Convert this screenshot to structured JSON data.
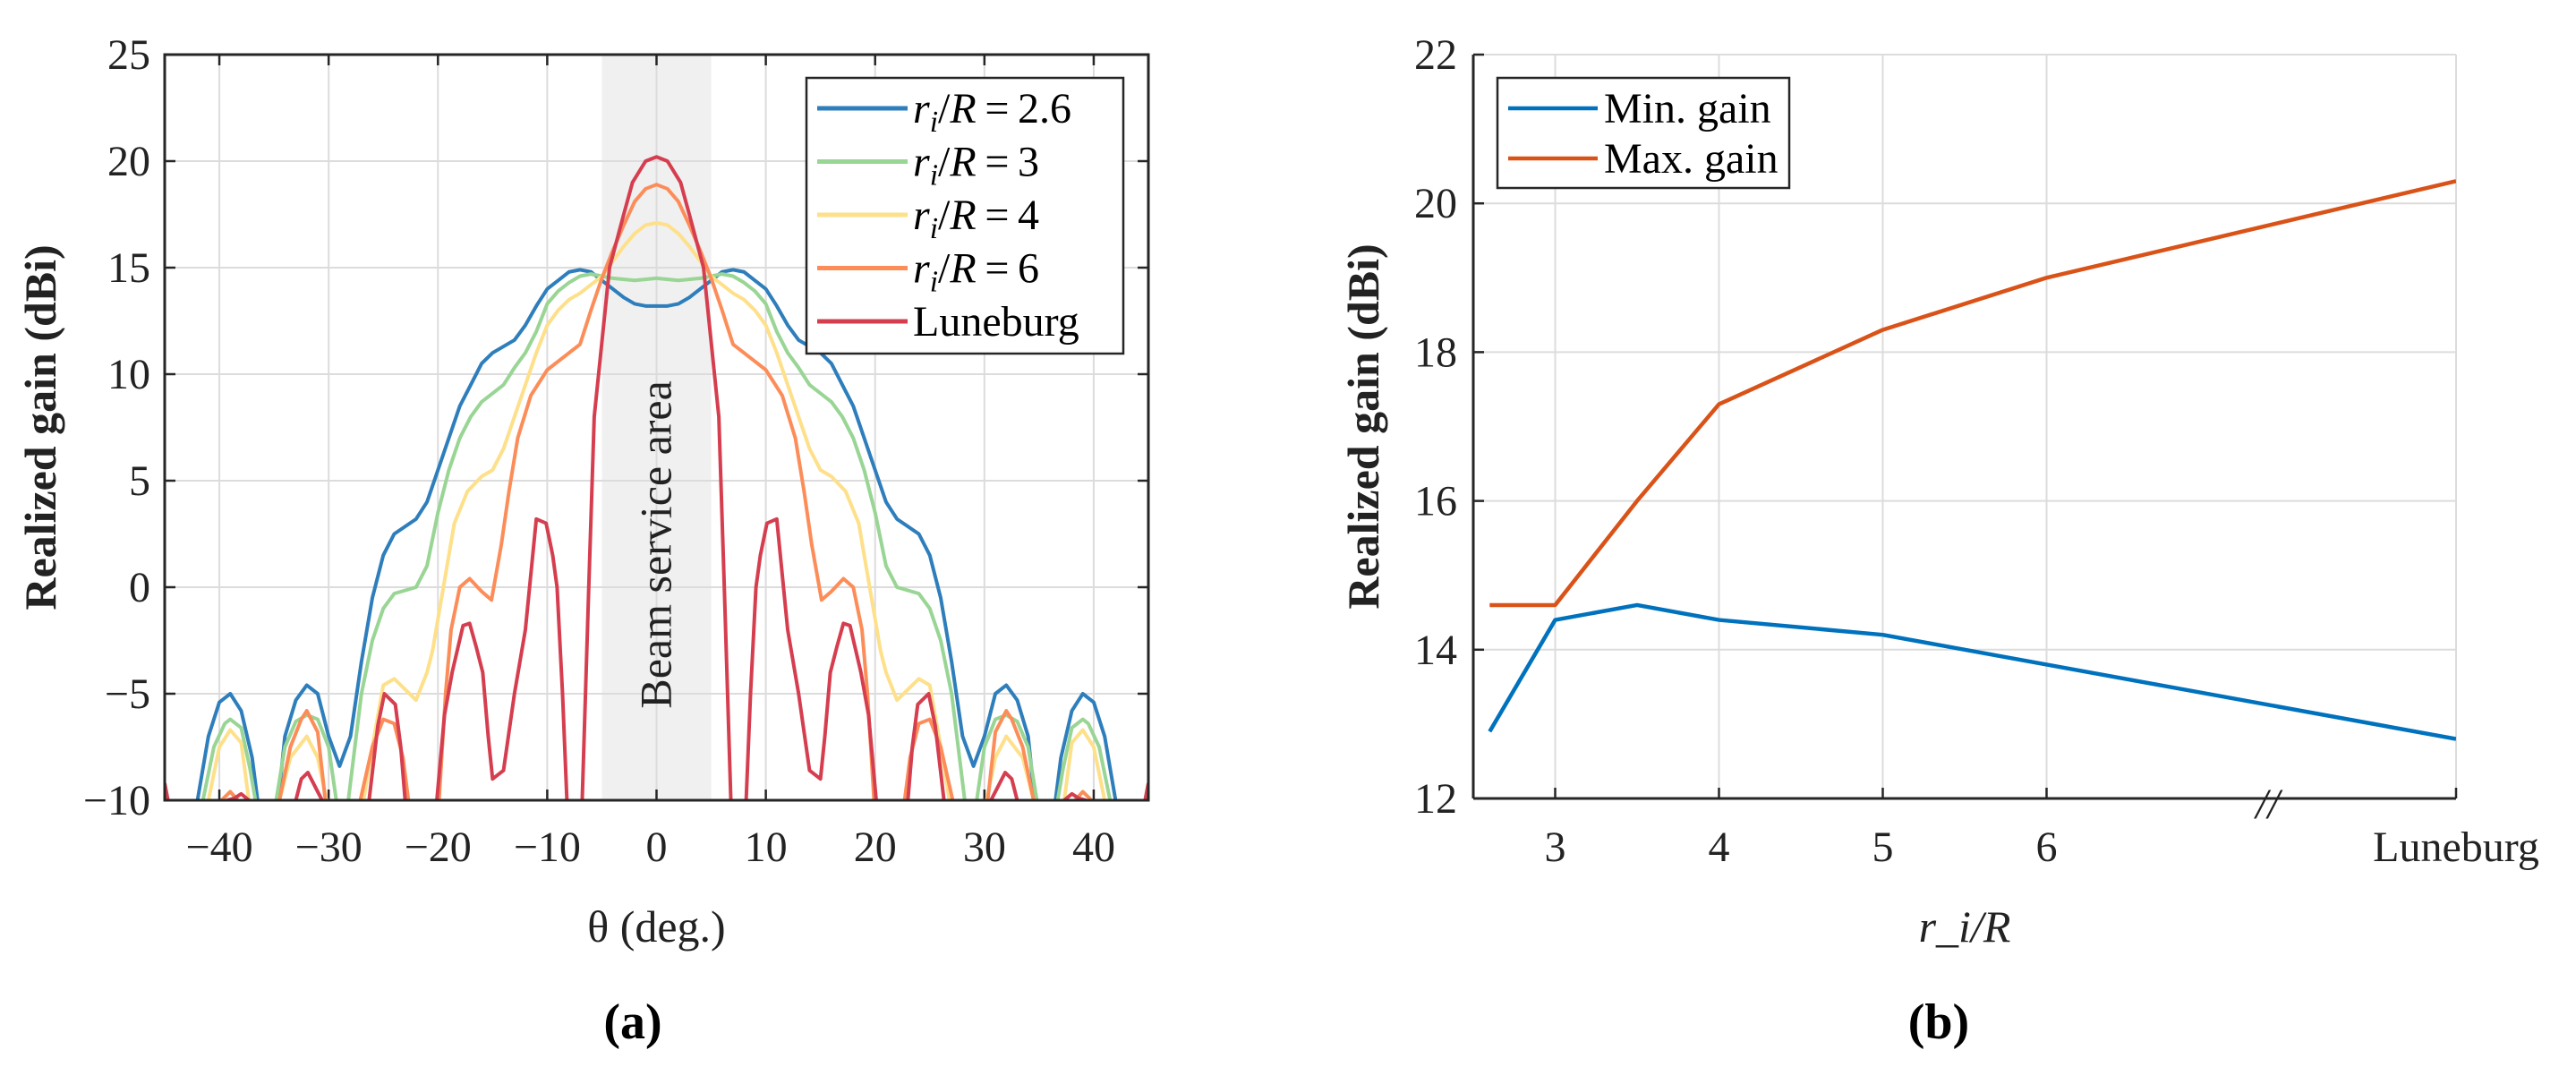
{
  "chart_data": [
    {
      "type": "line",
      "panel_label": "(a)",
      "xlabel": "θ (deg.)",
      "ylabel": "Realized gain (dBi)",
      "xlim": [
        -45,
        45
      ],
      "ylim": [
        -10,
        25
      ],
      "xticks": [
        -40,
        -30,
        -20,
        -10,
        0,
        10,
        20,
        30,
        40
      ],
      "yticks": [
        -10,
        -5,
        0,
        5,
        10,
        15,
        20,
        25
      ],
      "grid": true,
      "legend_position": "top-right",
      "symmetric_about_zero": true,
      "shaded_region": {
        "x": [
          -5,
          5
        ],
        "label": "Beam service area",
        "color": "#f0f0f0"
      },
      "series": [
        {
          "name": "r_i/R = 2.6",
          "color": "#2e7ebc",
          "segments": [
            [
              [
                -42,
                -10
              ],
              [
                -41,
                -7
              ],
              [
                -40,
                -5.4
              ],
              [
                -39,
                -5
              ],
              [
                -38,
                -5.8
              ],
              [
                -37,
                -8
              ],
              [
                -36.5,
                -10
              ]
            ],
            [
              [
                -34.6,
                -10
              ],
              [
                -34,
                -7
              ],
              [
                -33,
                -5.3
              ],
              [
                -32,
                -4.6
              ],
              [
                -31,
                -5
              ],
              [
                -30,
                -7
              ],
              [
                -29,
                -8.4
              ],
              [
                -28,
                -7
              ],
              [
                -27,
                -3.5
              ],
              [
                -26,
                -0.5
              ],
              [
                -25,
                1.5
              ],
              [
                -24,
                2.5
              ],
              [
                -22,
                3.2
              ],
              [
                -21,
                4
              ],
              [
                -20,
                5.5
              ],
              [
                -19,
                7
              ],
              [
                -18,
                8.5
              ],
              [
                -17,
                9.5
              ],
              [
                -16,
                10.5
              ],
              [
                -15,
                11
              ],
              [
                -13,
                11.6
              ],
              [
                -12,
                12.3
              ],
              [
                -11,
                13.2
              ],
              [
                -10,
                14
              ],
              [
                -9,
                14.4
              ],
              [
                -8,
                14.8
              ],
              [
                -7,
                14.9
              ],
              [
                -6,
                14.8
              ],
              [
                -5,
                14.4
              ],
              [
                -4,
                14
              ],
              [
                -3,
                13.6
              ],
              [
                -2,
                13.3
              ],
              [
                -1,
                13.2
              ],
              [
                0,
                13.2
              ]
            ]
          ]
        },
        {
          "name": "r_i/R = 3",
          "color": "#99d594",
          "segments": [
            [
              [
                -41.5,
                -10
              ],
              [
                -40.5,
                -7.5
              ],
              [
                -39.5,
                -6.4
              ],
              [
                -39,
                -6.2
              ],
              [
                -38,
                -6.6
              ],
              [
                -37.2,
                -8.5
              ],
              [
                -36.7,
                -10
              ]
            ],
            [
              [
                -34.8,
                -10
              ],
              [
                -34,
                -7.5
              ],
              [
                -33,
                -6.3
              ],
              [
                -32,
                -6
              ],
              [
                -31,
                -6.2
              ],
              [
                -30,
                -7.5
              ],
              [
                -29.3,
                -10
              ]
            ],
            [
              [
                -28.2,
                -10
              ],
              [
                -27,
                -5
              ],
              [
                -26,
                -2.5
              ],
              [
                -25,
                -1
              ],
              [
                -24,
                -0.3
              ],
              [
                -22,
                0
              ],
              [
                -21,
                1
              ],
              [
                -20,
                3.5
              ],
              [
                -19,
                5.5
              ],
              [
                -18,
                7
              ],
              [
                -17,
                8
              ],
              [
                -16,
                8.7
              ],
              [
                -14,
                9.5
              ],
              [
                -13,
                10.3
              ],
              [
                -12,
                11
              ],
              [
                -11,
                12
              ],
              [
                -10,
                13.3
              ],
              [
                -9,
                13.9
              ],
              [
                -8,
                14.3
              ],
              [
                -7,
                14.6
              ],
              [
                -6,
                14.7
              ],
              [
                -5,
                14.6
              ],
              [
                -4,
                14.5
              ],
              [
                -2,
                14.4
              ],
              [
                0,
                14.5
              ]
            ]
          ]
        },
        {
          "name": "r_i/R = 4",
          "color": "#fee08b",
          "segments": [
            [
              [
                -41,
                -10
              ],
              [
                -40,
                -7.5
              ],
              [
                -39,
                -6.7
              ],
              [
                -38,
                -7.3
              ],
              [
                -37.3,
                -10
              ]
            ],
            [
              [
                -34.5,
                -10
              ],
              [
                -33.5,
                -8
              ],
              [
                -32,
                -7
              ],
              [
                -31,
                -8
              ],
              [
                -30.2,
                -10
              ]
            ],
            [
              [
                -26.8,
                -10
              ],
              [
                -26,
                -7.5
              ],
              [
                -25,
                -4.6
              ],
              [
                -24,
                -4.3
              ],
              [
                -23,
                -4.8
              ],
              [
                -22,
                -5.3
              ],
              [
                -21,
                -4
              ],
              [
                -20.5,
                -3
              ],
              [
                -19.5,
                0
              ],
              [
                -18.5,
                3
              ],
              [
                -17.3,
                4.5
              ],
              [
                -16,
                5.2
              ],
              [
                -15,
                5.5
              ],
              [
                -14,
                6.5
              ],
              [
                -13,
                8
              ],
              [
                -12,
                9.5
              ],
              [
                -11,
                11
              ],
              [
                -10,
                12.3
              ],
              [
                -9,
                13
              ],
              [
                -8,
                13.5
              ],
              [
                -7,
                13.8
              ],
              [
                -6,
                14.2
              ],
              [
                -5,
                14.6
              ],
              [
                -4,
                15.3
              ],
              [
                -3,
                16
              ],
              [
                -2,
                16.6
              ],
              [
                -1,
                17
              ],
              [
                0,
                17.1
              ]
            ]
          ]
        },
        {
          "name": "r_i/R = 6",
          "color": "#fc8d59",
          "segments": [
            [
              [
                -39.8,
                -10
              ],
              [
                -39,
                -9.6
              ],
              [
                -38.3,
                -10
              ]
            ],
            [
              [
                -34.5,
                -10
              ],
              [
                -33.5,
                -7.5
              ],
              [
                -32.5,
                -6.2
              ],
              [
                -32,
                -5.8
              ],
              [
                -31,
                -6.8
              ],
              [
                -30.3,
                -10
              ]
            ],
            [
              [
                -27.1,
                -10
              ],
              [
                -26,
                -7.5
              ],
              [
                -25,
                -6.2
              ],
              [
                -24,
                -6.4
              ],
              [
                -23.2,
                -8
              ],
              [
                -22.7,
                -10
              ]
            ],
            [
              [
                -19.9,
                -10
              ],
              [
                -19.3,
                -5
              ],
              [
                -18.8,
                -2
              ],
              [
                -18,
                0
              ],
              [
                -17.1,
                0.4
              ],
              [
                -16,
                -0.2
              ],
              [
                -15.1,
                -0.6
              ],
              [
                -14.2,
                2
              ],
              [
                -13.5,
                4.5
              ],
              [
                -12.7,
                7
              ],
              [
                -11.5,
                9
              ],
              [
                -10,
                10.2
              ],
              [
                -9,
                10.6
              ],
              [
                -8,
                11
              ],
              [
                -7,
                11.4
              ],
              [
                -6,
                13
              ],
              [
                -5,
                14.5
              ],
              [
                -4,
                15.8
              ],
              [
                -3,
                17
              ],
              [
                -2,
                18.1
              ],
              [
                -1,
                18.7
              ],
              [
                0,
                18.9
              ]
            ]
          ]
        },
        {
          "name": "Luneburg",
          "color": "#d53e4f",
          "segments": [
            [
              [
                -45,
                -9.2
              ],
              [
                -44.7,
                -10
              ]
            ],
            [
              [
                -39.3,
                -10
              ],
              [
                -38.6,
                -9.9
              ],
              [
                -38,
                -9.7
              ],
              [
                -37.3,
                -10
              ]
            ],
            [
              [
                -33,
                -10
              ],
              [
                -32.5,
                -9
              ],
              [
                -31.9,
                -8.7
              ],
              [
                -31.2,
                -9.4
              ],
              [
                -30.6,
                -10
              ]
            ],
            [
              [
                -26.3,
                -10
              ],
              [
                -25.5,
                -6.5
              ],
              [
                -24.9,
                -5
              ],
              [
                -23.9,
                -5.5
              ],
              [
                -23.4,
                -7.5
              ],
              [
                -23,
                -10
              ]
            ],
            [
              [
                -20.1,
                -10
              ],
              [
                -19.4,
                -6
              ],
              [
                -18.7,
                -4
              ],
              [
                -17.7,
                -1.8
              ],
              [
                -17.1,
                -1.7
              ],
              [
                -16.5,
                -2.8
              ],
              [
                -15.9,
                -4
              ],
              [
                -15.4,
                -7
              ],
              [
                -15,
                -9
              ],
              [
                -14,
                -8.6
              ],
              [
                -13,
                -5
              ],
              [
                -12,
                -2
              ],
              [
                -11,
                3.2
              ],
              [
                -10.1,
                3
              ],
              [
                -9.5,
                1.5
              ],
              [
                -9.1,
                0
              ],
              [
                -8.6,
                -5
              ],
              [
                -8.2,
                -10
              ]
            ],
            [
              [
                -6.8,
                -10
              ],
              [
                -6.2,
                0
              ],
              [
                -5.7,
                8
              ],
              [
                -4.3,
                15
              ],
              [
                -3,
                17.5
              ],
              [
                -2.2,
                19
              ],
              [
                -1,
                20
              ],
              [
                0,
                20.2
              ]
            ]
          ]
        }
      ]
    },
    {
      "type": "line",
      "panel_label": "(b)",
      "xlabel": "r_i/R",
      "ylabel": "Realized gain (dBi)",
      "xlim": [
        2.5,
        8.5
      ],
      "ylim": [
        12,
        22
      ],
      "xticks": [
        3,
        4,
        5,
        6,
        8.5
      ],
      "xtick_labels": [
        "3",
        "4",
        "5",
        "6",
        "Luneburg"
      ],
      "axis_break_symbol": "//",
      "axis_break_at": 7.35,
      "yticks": [
        12,
        14,
        16,
        18,
        20,
        22
      ],
      "grid": true,
      "legend_position": "top-left",
      "x": [
        2.6,
        3,
        3.5,
        4,
        5,
        6,
        8.5
      ],
      "series": [
        {
          "name": "Min. gain",
          "color": "#0072bd",
          "values": [
            12.9,
            14.4,
            14.6,
            14.4,
            14.2,
            13.8,
            12.8
          ]
        },
        {
          "name": "Max. gain",
          "color": "#d95319",
          "values": [
            14.6,
            14.6,
            16.0,
            17.3,
            18.3,
            19.0,
            20.3
          ]
        }
      ]
    }
  ]
}
